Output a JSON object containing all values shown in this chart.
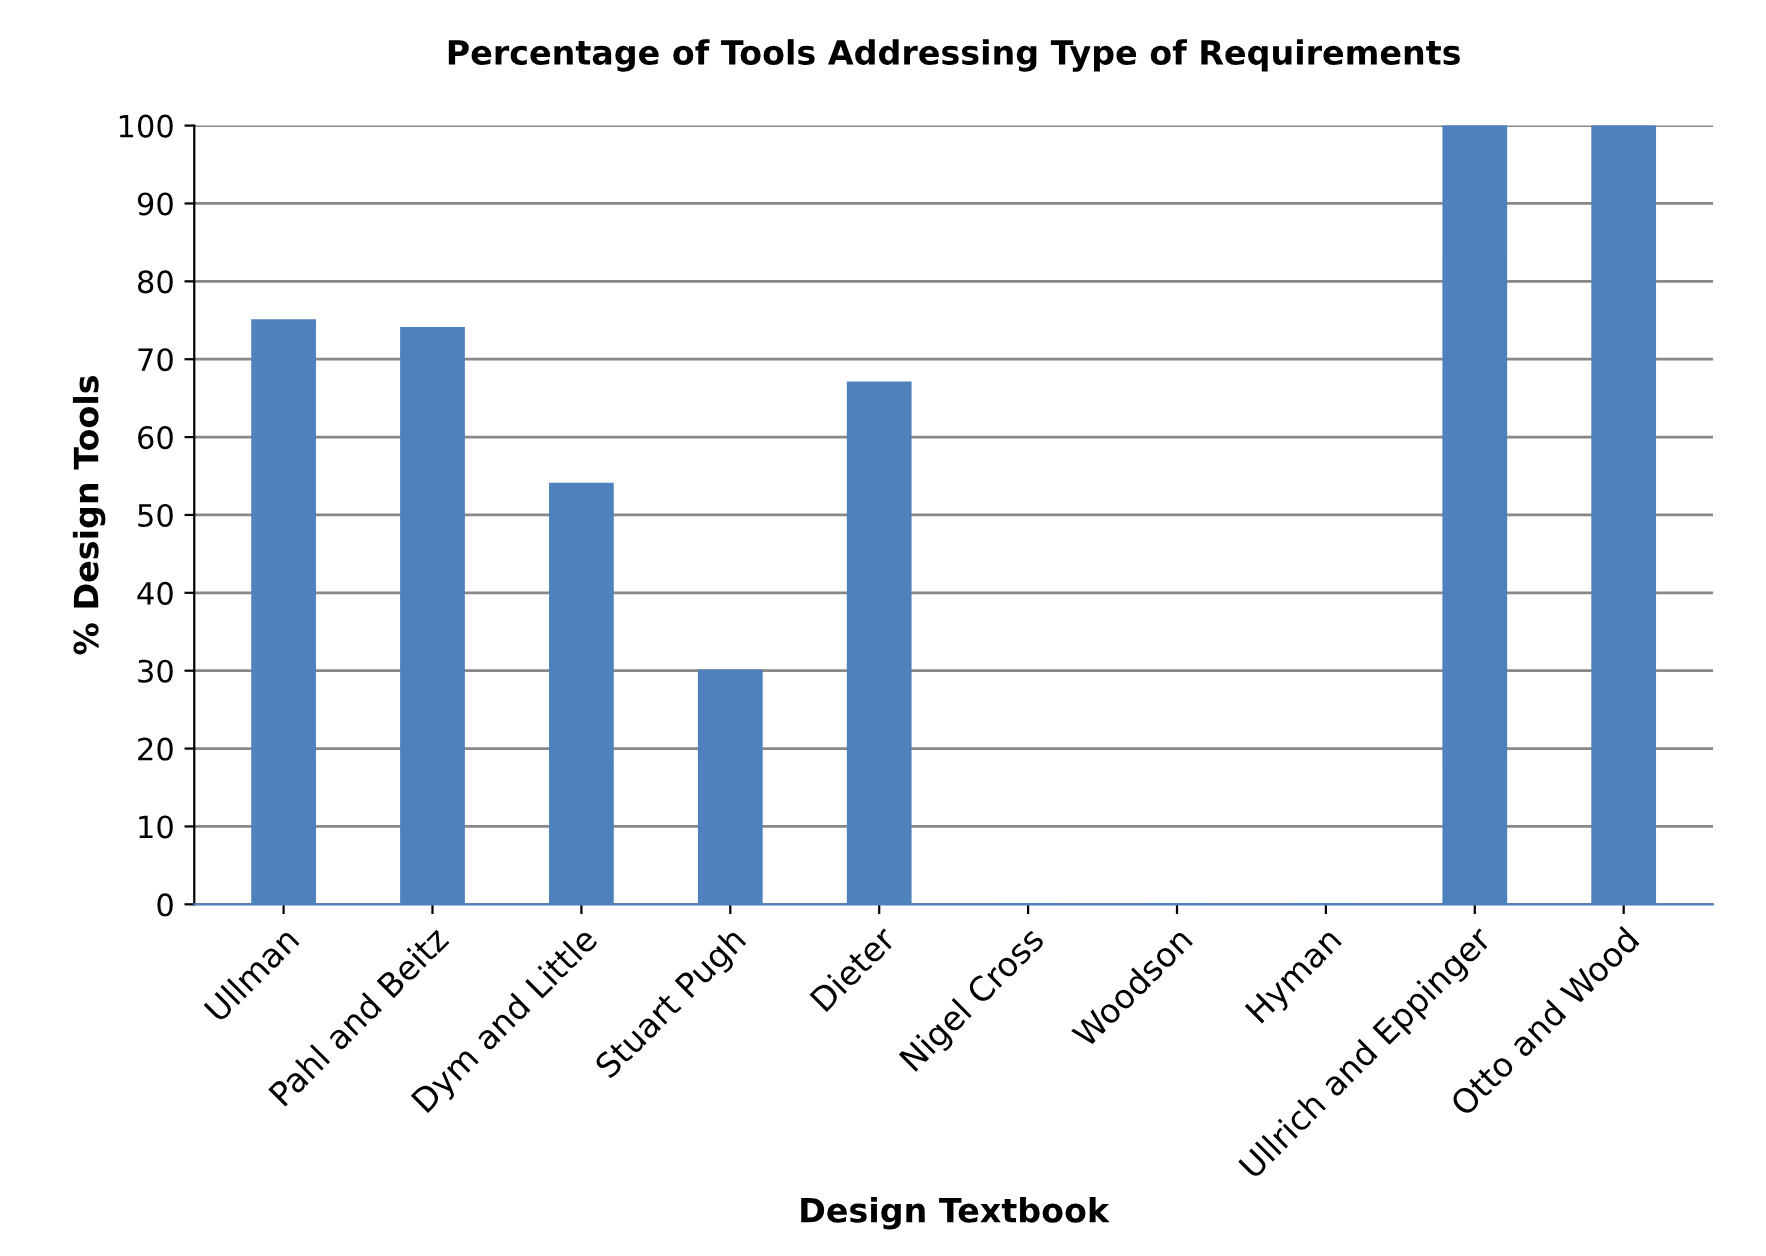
{
  "chart_data": {
    "type": "bar",
    "title": "Percentage of Tools Addressing Type of Requirements",
    "xlabel": "Design Textbook",
    "ylabel": "% Design Tools",
    "categories": [
      "Ullman",
      "Pahl and Beitz",
      "Dym and Little",
      "Stuart Pugh",
      "Dieter",
      "Nigel Cross",
      "Woodson",
      "Hyman",
      "Ullrich and Eppinger",
      "Otto and Wood"
    ],
    "values": [
      75,
      74,
      54,
      30,
      67,
      0,
      0,
      0,
      100,
      100
    ],
    "color": "#4f81bd",
    "ylim": [
      0,
      100
    ],
    "yticks": [
      0,
      10,
      20,
      30,
      40,
      50,
      60,
      70,
      80,
      90,
      100
    ],
    "grid": "y"
  }
}
